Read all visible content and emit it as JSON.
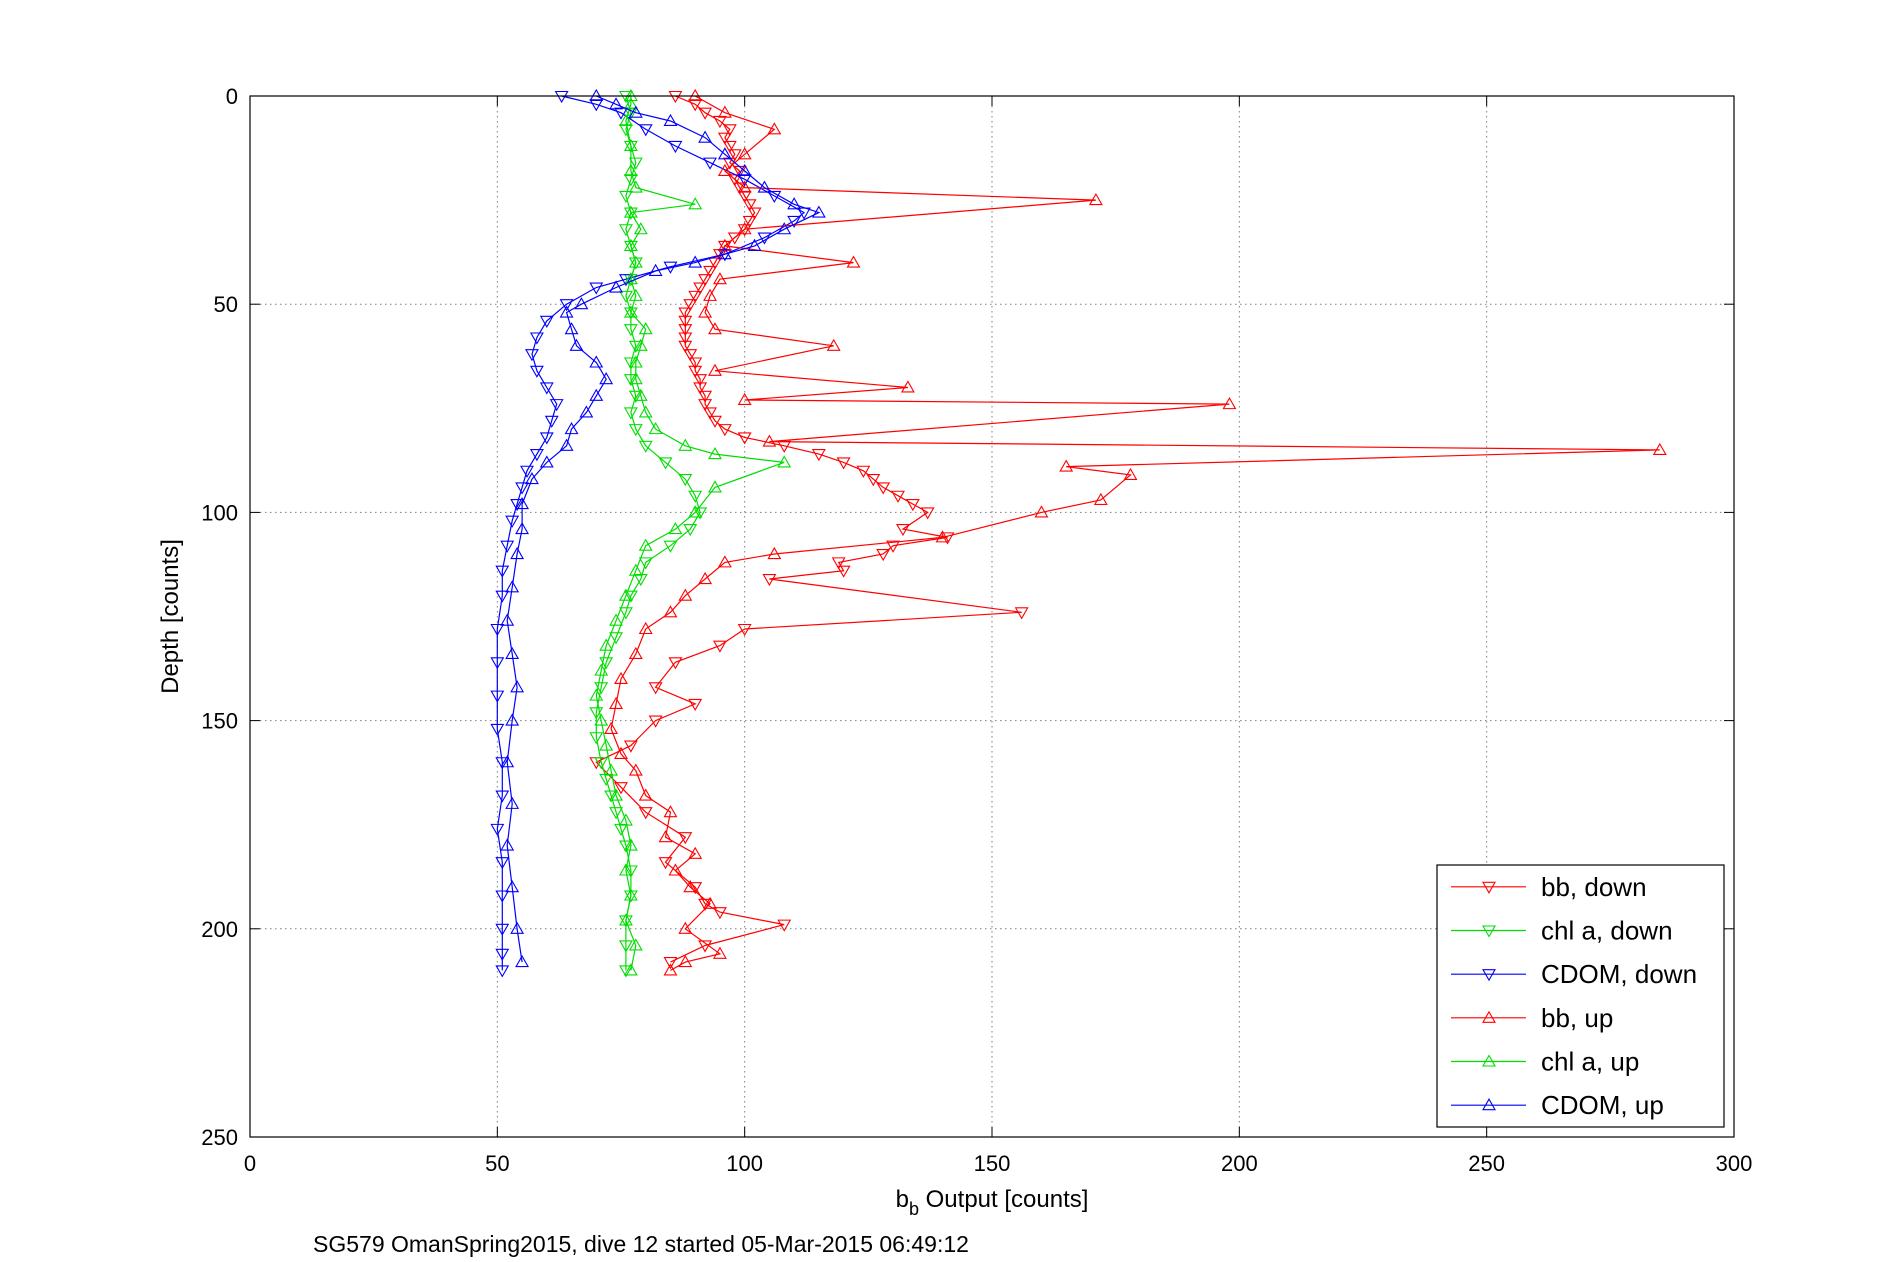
{
  "chart_data": {
    "type": "scatter",
    "xlabel_base": "b",
    "xlabel_sub": "b",
    "xlabel_rest": " Output [counts]",
    "ylabel": "Depth [counts]",
    "caption": "SG579 OmanSpring2015, dive 12 started 05-Mar-2015 06:49:12",
    "xlim": [
      0,
      300
    ],
    "ylim": [
      0,
      250
    ],
    "y_reversed": true,
    "grid": true,
    "xticks": [
      0,
      50,
      100,
      150,
      200,
      250,
      300
    ],
    "yticks": [
      0,
      50,
      100,
      150,
      200,
      250
    ],
    "xtick_labels": [
      "0",
      "50",
      "100",
      "150",
      "200",
      "250",
      "300"
    ],
    "ytick_labels": [
      "0",
      "50",
      "100",
      "150",
      "200",
      "250"
    ],
    "legend_position": "bottom-right",
    "series": [
      {
        "name": "bb, down",
        "color": "#ff0000",
        "marker": "triangle-down",
        "connected": true,
        "points": [
          [
            86,
            0
          ],
          [
            90,
            2
          ],
          [
            92,
            4
          ],
          [
            95,
            6
          ],
          [
            97,
            8
          ],
          [
            96,
            10
          ],
          [
            97,
            12
          ],
          [
            98,
            14
          ],
          [
            97,
            16
          ],
          [
            99,
            18
          ],
          [
            98,
            20
          ],
          [
            99,
            22
          ],
          [
            100,
            24
          ],
          [
            101,
            26
          ],
          [
            102,
            28
          ],
          [
            101,
            30
          ],
          [
            100,
            32
          ],
          [
            98,
            34
          ],
          [
            96,
            36
          ],
          [
            95,
            38
          ],
          [
            94,
            40
          ],
          [
            93,
            42
          ],
          [
            92,
            44
          ],
          [
            91,
            46
          ],
          [
            90,
            48
          ],
          [
            89,
            50
          ],
          [
            88,
            52
          ],
          [
            88,
            54
          ],
          [
            88,
            56
          ],
          [
            88,
            58
          ],
          [
            88,
            60
          ],
          [
            89,
            62
          ],
          [
            90,
            64
          ],
          [
            90,
            66
          ],
          [
            91,
            68
          ],
          [
            91,
            70
          ],
          [
            92,
            72
          ],
          [
            92,
            74
          ],
          [
            93,
            76
          ],
          [
            94,
            78
          ],
          [
            96,
            80
          ],
          [
            100,
            82
          ],
          [
            108,
            84
          ],
          [
            115,
            86
          ],
          [
            120,
            88
          ],
          [
            124,
            90
          ],
          [
            126,
            92
          ],
          [
            128,
            94
          ],
          [
            131,
            96
          ],
          [
            134,
            98
          ],
          [
            137,
            100
          ],
          [
            132,
            104
          ],
          [
            141,
            106
          ],
          [
            130,
            108
          ],
          [
            128,
            110
          ],
          [
            119,
            112
          ],
          [
            120,
            114
          ],
          [
            105,
            116
          ],
          [
            156,
            124
          ],
          [
            100,
            128
          ],
          [
            95,
            132
          ],
          [
            86,
            136
          ],
          [
            82,
            142
          ],
          [
            90,
            146
          ],
          [
            82,
            150
          ],
          [
            77,
            156
          ],
          [
            70,
            160
          ],
          [
            75,
            166
          ],
          [
            80,
            172
          ],
          [
            88,
            178
          ],
          [
            84,
            184
          ],
          [
            90,
            190
          ],
          [
            92,
            194
          ],
          [
            95,
            196
          ],
          [
            108,
            199
          ],
          [
            92,
            204
          ],
          [
            85,
            208
          ]
        ]
      },
      {
        "name": "chl a, down",
        "color": "#00dd00",
        "marker": "triangle-down",
        "connected": true,
        "points": [
          [
            76,
            0
          ],
          [
            77,
            4
          ],
          [
            76,
            8
          ],
          [
            77,
            12
          ],
          [
            78,
            16
          ],
          [
            77,
            20
          ],
          [
            76,
            24
          ],
          [
            77,
            28
          ],
          [
            76,
            32
          ],
          [
            77,
            36
          ],
          [
            78,
            40
          ],
          [
            77,
            44
          ],
          [
            76,
            48
          ],
          [
            77,
            52
          ],
          [
            77,
            56
          ],
          [
            78,
            60
          ],
          [
            77,
            64
          ],
          [
            77,
            68
          ],
          [
            78,
            72
          ],
          [
            77,
            76
          ],
          [
            78,
            80
          ],
          [
            80,
            84
          ],
          [
            84,
            88
          ],
          [
            88,
            92
          ],
          [
            90,
            96
          ],
          [
            91,
            100
          ],
          [
            89,
            104
          ],
          [
            85,
            108
          ],
          [
            80,
            112
          ],
          [
            79,
            116
          ],
          [
            77,
            120
          ],
          [
            76,
            124
          ],
          [
            74,
            130
          ],
          [
            72,
            136
          ],
          [
            71,
            142
          ],
          [
            70,
            148
          ],
          [
            70,
            154
          ],
          [
            71,
            160
          ],
          [
            72,
            164
          ],
          [
            73,
            168
          ],
          [
            74,
            172
          ],
          [
            75,
            176
          ],
          [
            76,
            180
          ],
          [
            77,
            186
          ],
          [
            77,
            192
          ],
          [
            76,
            198
          ],
          [
            76,
            204
          ],
          [
            76,
            210
          ]
        ]
      },
      {
        "name": "CDOM, down",
        "color": "#0000ff",
        "marker": "triangle-down",
        "connected": true,
        "points": [
          [
            63,
            0
          ],
          [
            70,
            2
          ],
          [
            75,
            4
          ],
          [
            80,
            8
          ],
          [
            86,
            12
          ],
          [
            93,
            16
          ],
          [
            100,
            20
          ],
          [
            106,
            24
          ],
          [
            112,
            28
          ],
          [
            110,
            30
          ],
          [
            104,
            34
          ],
          [
            96,
            38
          ],
          [
            85,
            41
          ],
          [
            76,
            44
          ],
          [
            70,
            46
          ],
          [
            64,
            50
          ],
          [
            60,
            54
          ],
          [
            58,
            58
          ],
          [
            57,
            62
          ],
          [
            58,
            66
          ],
          [
            60,
            70
          ],
          [
            62,
            74
          ],
          [
            61,
            78
          ],
          [
            60,
            82
          ],
          [
            58,
            86
          ],
          [
            56,
            90
          ],
          [
            55,
            94
          ],
          [
            54,
            98
          ],
          [
            53,
            102
          ],
          [
            52,
            108
          ],
          [
            51,
            114
          ],
          [
            51,
            120
          ],
          [
            50,
            128
          ],
          [
            50,
            136
          ],
          [
            50,
            144
          ],
          [
            50,
            152
          ],
          [
            51,
            160
          ],
          [
            51,
            168
          ],
          [
            50,
            176
          ],
          [
            51,
            184
          ],
          [
            51,
            192
          ],
          [
            51,
            200
          ],
          [
            51,
            206
          ],
          [
            51,
            210
          ]
        ]
      },
      {
        "name": "bb, up",
        "color": "#ff0000",
        "marker": "triangle-up",
        "connected": true,
        "points": [
          [
            85,
            210
          ],
          [
            88,
            208
          ],
          [
            95,
            206
          ],
          [
            88,
            200
          ],
          [
            93,
            194
          ],
          [
            89,
            190
          ],
          [
            86,
            186
          ],
          [
            90,
            182
          ],
          [
            84,
            178
          ],
          [
            85,
            172
          ],
          [
            80,
            168
          ],
          [
            78,
            162
          ],
          [
            75,
            158
          ],
          [
            73,
            152
          ],
          [
            74,
            146
          ],
          [
            75,
            140
          ],
          [
            78,
            134
          ],
          [
            80,
            128
          ],
          [
            85,
            124
          ],
          [
            88,
            120
          ],
          [
            92,
            116
          ],
          [
            96,
            112
          ],
          [
            106,
            110
          ],
          [
            140,
            106
          ],
          [
            160,
            100
          ],
          [
            172,
            97
          ],
          [
            178,
            91
          ],
          [
            165,
            89
          ],
          [
            285,
            85
          ],
          [
            105,
            83
          ],
          [
            198,
            74
          ],
          [
            100,
            73
          ],
          [
            133,
            70
          ],
          [
            94,
            66
          ],
          [
            118,
            60
          ],
          [
            94,
            56
          ],
          [
            92,
            52
          ],
          [
            93,
            48
          ],
          [
            95,
            44
          ],
          [
            122,
            40
          ],
          [
            96,
            36
          ],
          [
            100,
            32
          ],
          [
            171,
            25
          ],
          [
            100,
            22
          ],
          [
            96,
            18
          ],
          [
            100,
            14
          ],
          [
            106,
            8
          ],
          [
            96,
            4
          ],
          [
            90,
            0
          ]
        ]
      },
      {
        "name": "chl a, up",
        "color": "#00dd00",
        "marker": "triangle-up",
        "connected": true,
        "points": [
          [
            77,
            210
          ],
          [
            78,
            204
          ],
          [
            76,
            198
          ],
          [
            77,
            192
          ],
          [
            76,
            186
          ],
          [
            77,
            180
          ],
          [
            76,
            174
          ],
          [
            74,
            168
          ],
          [
            73,
            162
          ],
          [
            72,
            156
          ],
          [
            71,
            150
          ],
          [
            70,
            144
          ],
          [
            71,
            138
          ],
          [
            72,
            132
          ],
          [
            74,
            126
          ],
          [
            76,
            120
          ],
          [
            78,
            114
          ],
          [
            80,
            108
          ],
          [
            86,
            104
          ],
          [
            90,
            100
          ],
          [
            94,
            94
          ],
          [
            108,
            88
          ],
          [
            94,
            86
          ],
          [
            88,
            84
          ],
          [
            82,
            80
          ],
          [
            80,
            76
          ],
          [
            79,
            72
          ],
          [
            78,
            68
          ],
          [
            78,
            64
          ],
          [
            79,
            60
          ],
          [
            80,
            56
          ],
          [
            77,
            52
          ],
          [
            78,
            48
          ],
          [
            77,
            44
          ],
          [
            78,
            40
          ],
          [
            77,
            36
          ],
          [
            79,
            32
          ],
          [
            77,
            28
          ],
          [
            90,
            26
          ],
          [
            78,
            22
          ],
          [
            77,
            18
          ],
          [
            77,
            12
          ],
          [
            76,
            6
          ],
          [
            77,
            2
          ],
          [
            77,
            0
          ]
        ]
      },
      {
        "name": "CDOM, up",
        "color": "#0000ff",
        "marker": "triangle-up",
        "connected": true,
        "points": [
          [
            55,
            208
          ],
          [
            54,
            200
          ],
          [
            53,
            190
          ],
          [
            52,
            180
          ],
          [
            53,
            170
          ],
          [
            52,
            160
          ],
          [
            53,
            150
          ],
          [
            54,
            142
          ],
          [
            53,
            134
          ],
          [
            52,
            126
          ],
          [
            53,
            118
          ],
          [
            54,
            110
          ],
          [
            55,
            104
          ],
          [
            55,
            98
          ],
          [
            57,
            92
          ],
          [
            60,
            88
          ],
          [
            64,
            84
          ],
          [
            65,
            80
          ],
          [
            68,
            76
          ],
          [
            70,
            72
          ],
          [
            72,
            68
          ],
          [
            70,
            64
          ],
          [
            66,
            60
          ],
          [
            65,
            56
          ],
          [
            64,
            52
          ],
          [
            67,
            50
          ],
          [
            74,
            46
          ],
          [
            82,
            42
          ],
          [
            90,
            40
          ],
          [
            96,
            38
          ],
          [
            102,
            36
          ],
          [
            108,
            32
          ],
          [
            115,
            28
          ],
          [
            110,
            26
          ],
          [
            104,
            22
          ],
          [
            100,
            18
          ],
          [
            96,
            14
          ],
          [
            92,
            10
          ],
          [
            85,
            6
          ],
          [
            78,
            4
          ],
          [
            74,
            2
          ],
          [
            70,
            0
          ]
        ]
      }
    ]
  }
}
